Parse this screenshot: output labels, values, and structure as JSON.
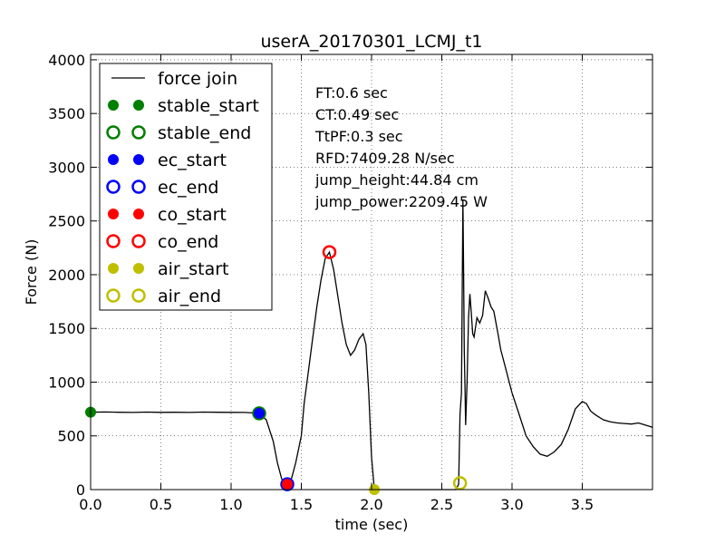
{
  "chart_data": {
    "type": "line",
    "title": "userA_20170301_LCMJ_t1",
    "xlabel": "time (sec)",
    "ylabel": "Force (N)",
    "xlim": [
      0,
      4.0
    ],
    "ylim": [
      0,
      4050
    ],
    "xticks": [
      0.0,
      0.5,
      1.0,
      1.5,
      2.0,
      2.5,
      3.0,
      3.5
    ],
    "xtick_labels": [
      "0.0",
      "0.5",
      "1.0",
      "1.5",
      "2.0",
      "2.5",
      "3.0",
      "3.5"
    ],
    "yticks": [
      0,
      500,
      1000,
      1500,
      2000,
      2500,
      3000,
      3500,
      4000
    ],
    "ytick_labels": [
      "0",
      "500",
      "1000",
      "1500",
      "2000",
      "2500",
      "3000",
      "3500",
      "4000"
    ],
    "grid": true,
    "legend_position": "top-left",
    "series": [
      {
        "name": "force join",
        "color": "#000000",
        "x": [
          0,
          0.1,
          0.2,
          0.3,
          0.4,
          0.5,
          0.6,
          0.7,
          0.8,
          0.9,
          1.0,
          1.1,
          1.2,
          1.25,
          1.3,
          1.33,
          1.36,
          1.4,
          1.43,
          1.46,
          1.5,
          1.52,
          1.55,
          1.58,
          1.61,
          1.64,
          1.67,
          1.7,
          1.73,
          1.76,
          1.79,
          1.82,
          1.85,
          1.88,
          1.91,
          1.94,
          1.96,
          1.98,
          2.0,
          2.02,
          2.2,
          2.4,
          2.6,
          2.62,
          2.63,
          2.64,
          2.65,
          2.655,
          2.66,
          2.665,
          2.67,
          2.68,
          2.69,
          2.7,
          2.71,
          2.72,
          2.73,
          2.75,
          2.77,
          2.79,
          2.81,
          2.83,
          2.85,
          2.87,
          2.9,
          2.92,
          2.95,
          2.98,
          3.0,
          3.05,
          3.1,
          3.15,
          3.2,
          3.25,
          3.3,
          3.35,
          3.4,
          3.45,
          3.5,
          3.53,
          3.56,
          3.6,
          3.65,
          3.7,
          3.75,
          3.8,
          3.85,
          3.9,
          3.95,
          4.0
        ],
        "y": [
          720,
          722,
          720,
          718,
          721,
          719,
          720,
          718,
          721,
          720,
          719,
          718,
          710,
          650,
          450,
          250,
          100,
          40,
          100,
          250,
          500,
          800,
          1100,
          1400,
          1700,
          1950,
          2150,
          2210,
          2050,
          1800,
          1550,
          1350,
          1250,
          1300,
          1400,
          1450,
          1350,
          900,
          300,
          0,
          0,
          0,
          0,
          50,
          700,
          900,
          2700,
          2100,
          1300,
          950,
          600,
          1000,
          1600,
          1820,
          1650,
          1450,
          1420,
          1600,
          1550,
          1620,
          1850,
          1780,
          1700,
          1660,
          1450,
          1300,
          1150,
          1000,
          900,
          700,
          500,
          400,
          330,
          310,
          350,
          420,
          560,
          750,
          820,
          800,
          730,
          690,
          650,
          630,
          620,
          615,
          610,
          620,
          600,
          580
        ]
      }
    ],
    "markers": [
      {
        "name": "stable_start",
        "style": "dot",
        "color": "#007f00",
        "x": 0.0,
        "y": 720
      },
      {
        "name": "stable_end",
        "style": "ring",
        "color": "#007f00",
        "x": 1.2,
        "y": 710
      },
      {
        "name": "ec_start",
        "style": "dot",
        "color": "#0000ff",
        "x": 1.2,
        "y": 710
      },
      {
        "name": "ec_end",
        "style": "ring",
        "color": "#0000ff",
        "x": 1.4,
        "y": 50
      },
      {
        "name": "co_start",
        "style": "dot",
        "color": "#ff0000",
        "x": 1.4,
        "y": 50
      },
      {
        "name": "co_end",
        "style": "ring",
        "color": "#ff0000",
        "x": 1.7,
        "y": 2210
      },
      {
        "name": "air_start",
        "style": "dot",
        "color": "#bfbf00",
        "x": 2.02,
        "y": 0
      },
      {
        "name": "air_end",
        "style": "ring",
        "color": "#bfbf00",
        "x": 2.63,
        "y": 60
      }
    ],
    "annotations": [
      "FT:0.6 sec",
      "CT:0.49 sec",
      "TtPF:0.3 sec",
      "RFD:7409.28 N/sec",
      "jump_height:44.84 cm",
      "jump_power:2209.45 W"
    ],
    "legend": [
      {
        "label": "force join",
        "style": "line",
        "color": "#000000"
      },
      {
        "label": "stable_start",
        "style": "dot",
        "color": "#007f00"
      },
      {
        "label": "stable_end",
        "style": "ring",
        "color": "#007f00"
      },
      {
        "label": "ec_start",
        "style": "dot",
        "color": "#0000ff"
      },
      {
        "label": "ec_end",
        "style": "ring",
        "color": "#0000ff"
      },
      {
        "label": "co_start",
        "style": "dot",
        "color": "#ff0000"
      },
      {
        "label": "co_end",
        "style": "ring",
        "color": "#ff0000"
      },
      {
        "label": "air_start",
        "style": "dot",
        "color": "#bfbf00"
      },
      {
        "label": "air_end",
        "style": "ring",
        "color": "#bfbf00"
      }
    ]
  }
}
